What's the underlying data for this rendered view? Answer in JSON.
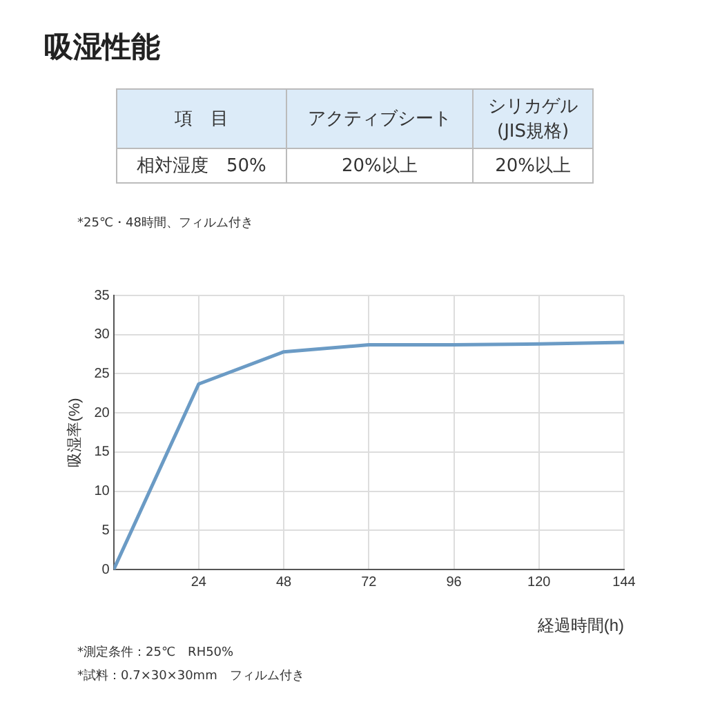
{
  "chart_data": [
    {
      "type": "other",
      "title": "吸湿性能",
      "annotations": [
        "項　目",
        "アクティブシート",
        "シリカゲル\n(JIS規格)",
        "相対湿度　50%",
        "20%以上",
        "20%以上"
      ]
    },
    {
      "type": "line",
      "xlabel": "経過時間(h)",
      "ylabel": "吸湿率(%)",
      "x": [
        0,
        24,
        48,
        72,
        96,
        120,
        144
      ],
      "series": [
        {
          "color": "#6b9bc5",
          "values": [
            0,
            23.7,
            27.8,
            28.7,
            28.7,
            28.8,
            29.0
          ]
        }
      ],
      "xlim": [
        0,
        144
      ],
      "xticks": [
        24,
        48,
        72,
        96,
        120,
        144
      ],
      "ylim": [
        0,
        35
      ],
      "yticks": [
        0,
        5,
        10,
        15,
        20,
        25,
        30,
        35
      ],
      "grid": true,
      "legend": false,
      "marker": "none",
      "line_style": "solid",
      "annotations": [
        "*25℃・48時間、フィルム付き",
        "*測定条件：25℃　RH50%",
        "*試料：0.7×30×30mm　フィルム付き"
      ]
    }
  ]
}
